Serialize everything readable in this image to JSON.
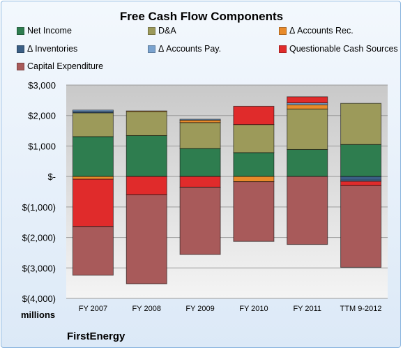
{
  "chart_data": {
    "type": "bar",
    "stacked": true,
    "title": "Free Cash Flow Components",
    "ylabel": "millions",
    "ylim": [
      -4000,
      3000
    ],
    "yticks": [
      3000,
      2000,
      1000,
      0,
      -1000,
      -2000,
      -3000,
      -4000
    ],
    "ytick_labels": [
      "$3,000",
      "$2,000",
      "$1,000",
      "$-",
      "$(1,000)",
      "$(2,000)",
      "$(3,000)",
      "$(4,000)"
    ],
    "categories": [
      "FY 2007",
      "FY 2008",
      "FY 2009",
      "FY 2010",
      "FY 2011",
      "TTM 9-2012"
    ],
    "legend_position": "top",
    "grid": true,
    "series": [
      {
        "name": "Net Income",
        "color": "#2e7d4f",
        "values": [
          1309,
          1342,
          920,
          784,
          885,
          1050
        ]
      },
      {
        "name": "D&A",
        "color": "#9c9a5a",
        "values": [
          780,
          790,
          850,
          920,
          1330,
          1350
        ]
      },
      {
        "name": "Δ Accounts Rec.",
        "color": "#e88a2a",
        "values": [
          -90,
          20,
          80,
          -170,
          140,
          0
        ]
      },
      {
        "name": "Δ Inventories",
        "color": "#3b5f85",
        "values": [
          40,
          0,
          0,
          0,
          0,
          -120
        ]
      },
      {
        "name": "Δ Accounts Pay.",
        "color": "#7aa3cf",
        "values": [
          50,
          0,
          30,
          0,
          60,
          -40
        ]
      },
      {
        "name": "Questionable Cash Sources",
        "color": "#e02b2b",
        "values": [
          -1550,
          -600,
          -350,
          600,
          200,
          -140
        ]
      },
      {
        "name": "Capital Expenditure",
        "color": "#a85a5a",
        "values": [
          -1600,
          -2920,
          -2210,
          -1960,
          -2230,
          -2680
        ]
      }
    ]
  },
  "brand": "FirstEnergy"
}
